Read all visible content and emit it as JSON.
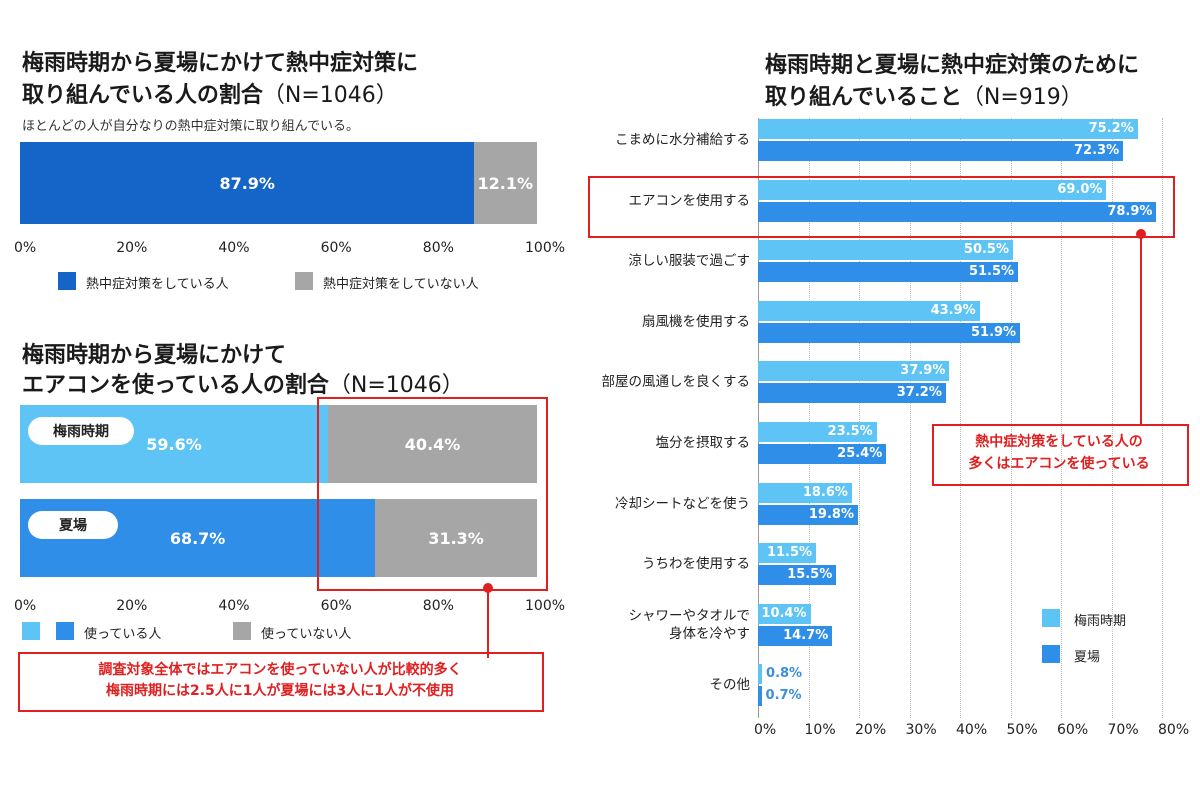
{
  "colors": {
    "primary_blue": "#1565c8",
    "light_blue": "#5ec4f5",
    "mid_blue": "#2f8fe8",
    "gray": "#a6a6a6",
    "accent_red": "#e02020"
  },
  "chart1": {
    "title_line1": "梅雨時期から夏場にかけて熱中症対策に",
    "title_line2": "取り組んでいる人の割合",
    "n_label": "（N=1046）",
    "subtitle": "ほとんどの人が自分なりの熱中症対策に取り組んでいる。",
    "axis_ticks": [
      "0%",
      "20%",
      "40%",
      "60%",
      "80%",
      "100%"
    ],
    "legend": [
      "熱中症対策をしている人",
      "熱中症対策をしていない人"
    ]
  },
  "chart2": {
    "title_line1": "梅雨時期から夏場にかけて",
    "title_line2": "エアコンを使っている人の割合",
    "n_label": "（N=1046）",
    "axis_ticks": [
      "0%",
      "20%",
      "40%",
      "60%",
      "80%",
      "100%"
    ],
    "legend": [
      "使っている人",
      "使っていない人"
    ],
    "callout_line1": "調査対象全体ではエアコンを使っていない人が比較的多く",
    "callout_line2": "梅雨時期には2.5人に1人が夏場には3人に1人が不使用"
  },
  "chart3": {
    "title_line1": "梅雨時期と夏場に熱中症対策のために",
    "title_line2": "取り組んでいること",
    "n_label": "（N=919）",
    "axis_ticks": [
      "0%",
      "10%",
      "20%",
      "30%",
      "40%",
      "50%",
      "60%",
      "70%",
      "80%"
    ],
    "legend": [
      "梅雨時期",
      "夏場"
    ],
    "callout_line1": "熱中症対策をしている人の",
    "callout_line2": "多くはエアコンを使っている"
  },
  "chart_data": [
    {
      "type": "bar",
      "orientation": "horizontal-stacked",
      "title": "梅雨時期から夏場にかけて熱中症対策に取り組んでいる人の割合（N=1046）",
      "subtitle": "ほとんどの人が自分なりの熱中症対策に取り組んでいる。",
      "categories": [
        ""
      ],
      "series": [
        {
          "name": "熱中症対策をしている人",
          "values": [
            87.9
          ],
          "labels": [
            "87.9%"
          ]
        },
        {
          "name": "熱中症対策をしていない人",
          "values": [
            12.1
          ],
          "labels": [
            "12.1%"
          ]
        }
      ],
      "xlim": [
        0,
        100
      ],
      "legend": "bottom",
      "grid": false
    },
    {
      "type": "bar",
      "orientation": "horizontal-stacked",
      "title": "梅雨時期から夏場にかけてエアコンを使っている人の割合（N=1046）",
      "categories": [
        "梅雨時期",
        "夏場"
      ],
      "series": [
        {
          "name": "使っている人",
          "values": [
            59.6,
            68.7
          ],
          "labels": [
            "59.6%",
            "68.7%"
          ]
        },
        {
          "name": "使っていない人",
          "values": [
            40.4,
            31.3
          ],
          "labels": [
            "40.4%",
            "31.3%"
          ]
        }
      ],
      "xlim": [
        0,
        100
      ],
      "legend": "bottom",
      "grid": false
    },
    {
      "type": "bar",
      "orientation": "horizontal-grouped",
      "title": "梅雨時期と夏場に熱中症対策のために取り組んでいること（N=919）",
      "categories": [
        "こまめに水分補給する",
        "エアコンを使用する",
        "涼しい服装で過ごす",
        "扇風機を使用する",
        "部屋の風通しを良くする",
        "塩分を摂取する",
        "冷却シートなどを使う",
        "うちわを使用する",
        "シャワーやタオルで\n身体を冷やす",
        "その他"
      ],
      "series": [
        {
          "name": "梅雨時期",
          "values": [
            75.2,
            69.0,
            50.5,
            43.9,
            37.9,
            23.5,
            18.6,
            11.5,
            10.4,
            0.8
          ],
          "labels": [
            "75.2%",
            "69.0%",
            "50.5%",
            "43.9%",
            "37.9%",
            "23.5%",
            "18.6%",
            "11.5%",
            "10.4%",
            "0.8%"
          ]
        },
        {
          "name": "夏場",
          "values": [
            72.3,
            78.9,
            51.5,
            51.9,
            37.2,
            25.4,
            19.8,
            15.5,
            14.7,
            0.7
          ],
          "labels": [
            "72.3%",
            "78.9%",
            "51.5%",
            "51.9%",
            "37.2%",
            "25.4%",
            "19.8%",
            "15.5%",
            "14.7%",
            "0.7%"
          ]
        }
      ],
      "xlim": [
        0,
        80
      ],
      "legend": "bottom-right",
      "grid": true
    }
  ]
}
